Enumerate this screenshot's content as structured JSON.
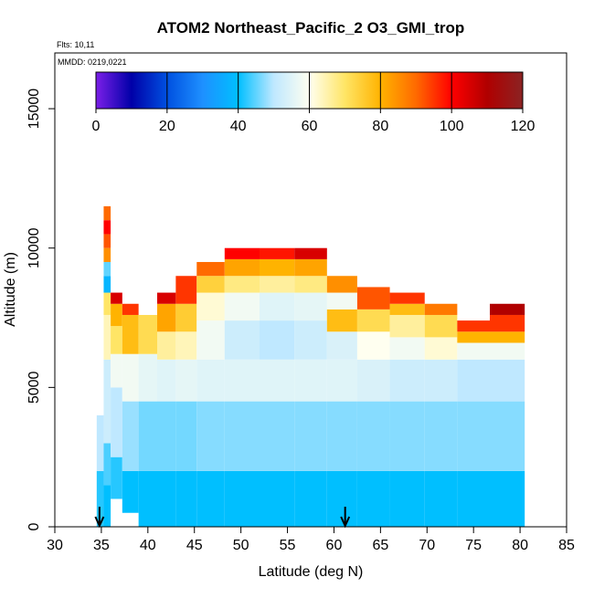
{
  "chart_data": {
    "type": "heatmap",
    "title": "ATOM2 Northeast_Pacific_2 O3_GMI_trop",
    "subtitle_lines": [
      "Flts: 10,11",
      "MMDD: 0219,0221"
    ],
    "xlabel": "Latitude (deg N)",
    "ylabel": "Altitude (m)",
    "xlim": [
      30,
      85
    ],
    "ylim": [
      0,
      17000
    ],
    "x_ticks": [
      30,
      35,
      40,
      45,
      50,
      55,
      60,
      65,
      70,
      75,
      80,
      85
    ],
    "y_ticks": [
      0,
      5000,
      10000,
      15000
    ],
    "colorbar": {
      "min": 0,
      "max": 120,
      "ticks": [
        0,
        20,
        40,
        60,
        80,
        100,
        120
      ],
      "placement": "top, inside plot",
      "colors": [
        "#7b1fe8",
        "#0000a8",
        "#0050e0",
        "#1e90ff",
        "#00bfff",
        "#bfe8ff",
        "#fffff0",
        "#ffe566",
        "#ffb300",
        "#ff6a00",
        "#ff0000",
        "#b00000",
        "#8b2323"
      ]
    },
    "grid": false,
    "arrow_markers_latitude": [
      34.8,
      61.2
    ],
    "columns": [
      {
        "lat": 35.0,
        "top": 4000,
        "levels": [
          [
            0,
            2000,
            42
          ],
          [
            2000,
            4000,
            50
          ]
        ]
      },
      {
        "lat": 35.5,
        "top": 11500,
        "levels": [
          [
            0,
            1500,
            40
          ],
          [
            1500,
            3000,
            44
          ],
          [
            3000,
            6000,
            52
          ],
          [
            6000,
            7600,
            64
          ],
          [
            7600,
            8400,
            70
          ],
          [
            8400,
            9000,
            38
          ],
          [
            9000,
            9500,
            45
          ],
          [
            9500,
            10000,
            85
          ],
          [
            10000,
            10500,
            92
          ],
          [
            10500,
            11000,
            100
          ],
          [
            11000,
            11500,
            90
          ]
        ]
      },
      {
        "lat": 36.5,
        "top": 8400,
        "levels": [
          [
            1000,
            2500,
            42
          ],
          [
            2500,
            5000,
            50
          ],
          [
            5000,
            6200,
            58
          ],
          [
            6200,
            7200,
            70
          ],
          [
            7200,
            8000,
            80
          ],
          [
            8000,
            8400,
            105
          ]
        ]
      },
      {
        "lat": 38.0,
        "top": 8000,
        "levels": [
          [
            500,
            2000,
            40
          ],
          [
            2000,
            4500,
            48
          ],
          [
            4500,
            6200,
            58
          ],
          [
            6200,
            7600,
            78
          ],
          [
            7600,
            8000,
            95
          ]
        ]
      },
      {
        "lat": 40.0,
        "top": 7600,
        "levels": [
          [
            0,
            2000,
            40
          ],
          [
            2000,
            4500,
            46
          ],
          [
            4500,
            6200,
            56
          ],
          [
            6200,
            7600,
            72
          ]
        ]
      },
      {
        "lat": 42.0,
        "top": 8400,
        "levels": [
          [
            0,
            2000,
            40
          ],
          [
            2000,
            4500,
            46
          ],
          [
            4500,
            6000,
            55
          ],
          [
            6000,
            7000,
            66
          ],
          [
            7000,
            8000,
            82
          ],
          [
            8000,
            8400,
            105
          ]
        ]
      },
      {
        "lat": 44.0,
        "top": 9000,
        "levels": [
          [
            0,
            2000,
            40
          ],
          [
            2000,
            4500,
            46
          ],
          [
            4500,
            6000,
            56
          ],
          [
            6000,
            7000,
            64
          ],
          [
            7000,
            8000,
            75
          ],
          [
            8000,
            9000,
            95
          ]
        ]
      },
      {
        "lat": 46.5,
        "top": 9500,
        "levels": [
          [
            0,
            2000,
            40
          ],
          [
            2000,
            4500,
            47
          ],
          [
            4500,
            6000,
            55
          ],
          [
            6000,
            7400,
            58
          ],
          [
            7400,
            8400,
            62
          ],
          [
            8400,
            9000,
            74
          ],
          [
            9000,
            9500,
            90
          ]
        ]
      },
      {
        "lat": 50.0,
        "top": 10000,
        "levels": [
          [
            0,
            2000,
            40
          ],
          [
            2000,
            4500,
            47
          ],
          [
            4500,
            6000,
            55
          ],
          [
            6000,
            7400,
            52
          ],
          [
            7400,
            8400,
            58
          ],
          [
            8400,
            9000,
            68
          ],
          [
            9000,
            9600,
            82
          ],
          [
            9600,
            10000,
            100
          ]
        ]
      },
      {
        "lat": 54.0,
        "top": 10000,
        "levels": [
          [
            0,
            2000,
            40
          ],
          [
            2000,
            4500,
            47
          ],
          [
            4500,
            6000,
            55
          ],
          [
            6000,
            7400,
            50
          ],
          [
            7400,
            8400,
            55
          ],
          [
            8400,
            9000,
            66
          ],
          [
            9000,
            9600,
            80
          ],
          [
            9600,
            10000,
            98
          ]
        ]
      },
      {
        "lat": 57.5,
        "top": 10000,
        "levels": [
          [
            0,
            2000,
            40
          ],
          [
            2000,
            4500,
            47
          ],
          [
            4500,
            6000,
            55
          ],
          [
            6000,
            7400,
            52
          ],
          [
            7400,
            8400,
            56
          ],
          [
            8400,
            9000,
            68
          ],
          [
            9000,
            9600,
            82
          ],
          [
            9600,
            10000,
            105
          ]
        ]
      },
      {
        "lat": 61.0,
        "top": 9000,
        "levels": [
          [
            0,
            2000,
            40
          ],
          [
            2000,
            4500,
            47
          ],
          [
            4500,
            6000,
            55
          ],
          [
            6000,
            7000,
            54
          ],
          [
            7000,
            7800,
            78
          ],
          [
            7800,
            8400,
            58
          ],
          [
            8400,
            9000,
            85
          ]
        ]
      },
      {
        "lat": 64.0,
        "top": 8600,
        "levels": [
          [
            0,
            2000,
            40
          ],
          [
            2000,
            4500,
            47
          ],
          [
            4500,
            6000,
            54
          ],
          [
            6000,
            7000,
            60
          ],
          [
            7000,
            7800,
            72
          ],
          [
            7800,
            8600,
            92
          ]
        ]
      },
      {
        "lat": 68.0,
        "top": 8400,
        "levels": [
          [
            0,
            2000,
            40
          ],
          [
            2000,
            4500,
            47
          ],
          [
            4500,
            6000,
            52
          ],
          [
            6000,
            6800,
            58
          ],
          [
            6800,
            7600,
            66
          ],
          [
            7600,
            8000,
            78
          ],
          [
            8000,
            8400,
            95
          ]
        ]
      },
      {
        "lat": 71.5,
        "top": 8000,
        "levels": [
          [
            0,
            2000,
            40
          ],
          [
            2000,
            4500,
            47
          ],
          [
            4500,
            6000,
            52
          ],
          [
            6000,
            6800,
            62
          ],
          [
            6800,
            7600,
            72
          ],
          [
            7600,
            8000,
            88
          ]
        ]
      },
      {
        "lat": 75.0,
        "top": 7400,
        "levels": [
          [
            0,
            2000,
            40
          ],
          [
            2000,
            4500,
            47
          ],
          [
            4500,
            6000,
            50
          ],
          [
            6000,
            6600,
            58
          ],
          [
            6600,
            7000,
            80
          ],
          [
            7000,
            7400,
            95
          ]
        ]
      },
      {
        "lat": 78.5,
        "top": 8000,
        "levels": [
          [
            0,
            2000,
            40
          ],
          [
            2000,
            4500,
            47
          ],
          [
            4500,
            6000,
            50
          ],
          [
            6000,
            6600,
            58
          ],
          [
            6600,
            7000,
            80
          ],
          [
            7000,
            7600,
            95
          ],
          [
            7600,
            8000,
            110
          ]
        ]
      }
    ]
  }
}
